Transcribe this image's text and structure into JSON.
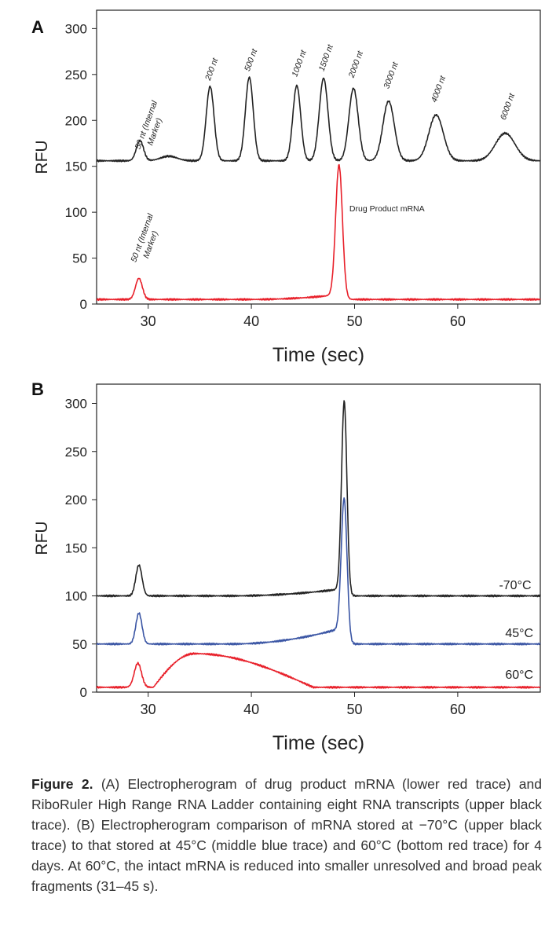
{
  "chart_data": [
    {
      "panel_label": "A",
      "type": "line",
      "xlabel": "Time (sec)",
      "ylabel": "RFU",
      "xlim": [
        25,
        68
      ],
      "ylim": [
        0,
        320
      ],
      "xticks": [
        30,
        40,
        50,
        60
      ],
      "yticks": [
        0,
        50,
        100,
        150,
        200,
        250,
        300
      ],
      "series": [
        {
          "name": "RiboRuler High Range RNA Ladder",
          "color": "#222222",
          "baseline": 156,
          "peaks": [
            {
              "t": 29.2,
              "h": 22,
              "w": 0.35
            },
            {
              "t": 32.0,
              "h": 5,
              "w": 0.8
            },
            {
              "t": 36.0,
              "h": 81,
              "w": 0.38
            },
            {
              "t": 39.8,
              "h": 91,
              "w": 0.38
            },
            {
              "t": 44.4,
              "h": 82,
              "w": 0.38
            },
            {
              "t": 47.0,
              "h": 90,
              "w": 0.42
            },
            {
              "t": 49.9,
              "h": 79,
              "w": 0.45
            },
            {
              "t": 53.3,
              "h": 65,
              "w": 0.55
            },
            {
              "t": 57.9,
              "h": 50,
              "w": 0.7
            },
            {
              "t": 64.6,
              "h": 30,
              "w": 0.95
            }
          ]
        },
        {
          "name": "Drug Product mRNA",
          "color": "#e8202a",
          "baseline": 5,
          "peaks": [
            {
              "t": 29.1,
              "h": 23,
              "w": 0.33
            },
            {
              "t": 48.5,
              "h": 143,
              "w": 0.33
            }
          ],
          "ramp": {
            "from": 40,
            "to": 48.3,
            "add": 5
          }
        }
      ],
      "annotations": [
        {
          "text": "50 nt (Internal Marker)",
          "line1": "50 nt (Internal",
          "line2": "Marker)",
          "t": 29.2,
          "y": 168,
          "rot": -70
        },
        {
          "text": "200 nt",
          "t": 36.0,
          "y": 243,
          "rot": -70
        },
        {
          "text": "500 nt",
          "t": 39.8,
          "y": 253,
          "rot": -70
        },
        {
          "text": "1000 nt",
          "t": 44.4,
          "y": 247,
          "rot": -70
        },
        {
          "text": "1500 nt",
          "t": 47.0,
          "y": 253,
          "rot": -70
        },
        {
          "text": "2000 nt",
          "t": 49.9,
          "y": 246,
          "rot": -70
        },
        {
          "text": "3000 nt",
          "t": 53.3,
          "y": 234,
          "rot": -70
        },
        {
          "text": "4000 nt",
          "t": 57.9,
          "y": 219,
          "rot": -70
        },
        {
          "text": "6000 nt",
          "t": 64.6,
          "y": 200,
          "rot": -70
        },
        {
          "text": "50 nt (Internal Marker)",
          "line1": "50 nt (Internal",
          "line2": "Marker)",
          "t": 28.8,
          "y": 45,
          "rot": -70
        },
        {
          "text": "Drug Product mRNA",
          "t": 49.5,
          "y": 101,
          "rot": 0
        }
      ]
    },
    {
      "panel_label": "B",
      "type": "line",
      "xlabel": "Time (sec)",
      "ylabel": "RFU",
      "xlim": [
        25,
        68
      ],
      "ylim": [
        0,
        320
      ],
      "xticks": [
        30,
        40,
        50,
        60
      ],
      "yticks": [
        0,
        50,
        100,
        150,
        200,
        250,
        300
      ],
      "series": [
        {
          "name": "-70°C",
          "color": "#222222",
          "baseline": 100,
          "peaks": [
            {
              "t": 29.1,
              "h": 32,
              "w": 0.3
            },
            {
              "t": 49.0,
              "h": 200,
              "w": 0.26
            }
          ],
          "ramp": {
            "from": 38,
            "to": 48.6,
            "add": 7
          }
        },
        {
          "name": "45°C",
          "color": "#3a55a4",
          "baseline": 50,
          "peaks": [
            {
              "t": 29.1,
              "h": 32,
              "w": 0.3
            },
            {
              "t": 49.0,
              "h": 146,
              "w": 0.28
            }
          ],
          "ramp": {
            "from": 38,
            "to": 48.6,
            "add": 16
          }
        },
        {
          "name": "60°C",
          "color": "#e8202a",
          "baseline": 5,
          "peaks": [
            {
              "t": 29.0,
              "h": 25,
              "w": 0.35
            }
          ],
          "hump": {
            "from": 30.5,
            "peak": 34.5,
            "to": 46,
            "h": 35
          }
        }
      ],
      "annotations": [
        {
          "text": "-70°C",
          "t": 64.0,
          "y": 107,
          "rot": 0
        },
        {
          "text": "45°C",
          "t": 64.6,
          "y": 57,
          "rot": 0
        },
        {
          "text": "60°C",
          "t": 64.6,
          "y": 14,
          "rot": 0
        }
      ]
    }
  ],
  "caption": {
    "label": "Figure 2.",
    "text": "(A) Electropherogram of drug product mRNA (lower red trace) and RiboRuler High Range RNA Ladder containing eight RNA transcripts (upper black trace). (B) Electropherogram comparison of mRNA stored at −70°C (upper black trace) to that stored at 45°C (middle blue trace) and 60°C (bottom red trace) for 4 days. At 60°C, the intact mRNA is reduced into smaller unresolved and broad peak fragments (31–45 s)."
  }
}
